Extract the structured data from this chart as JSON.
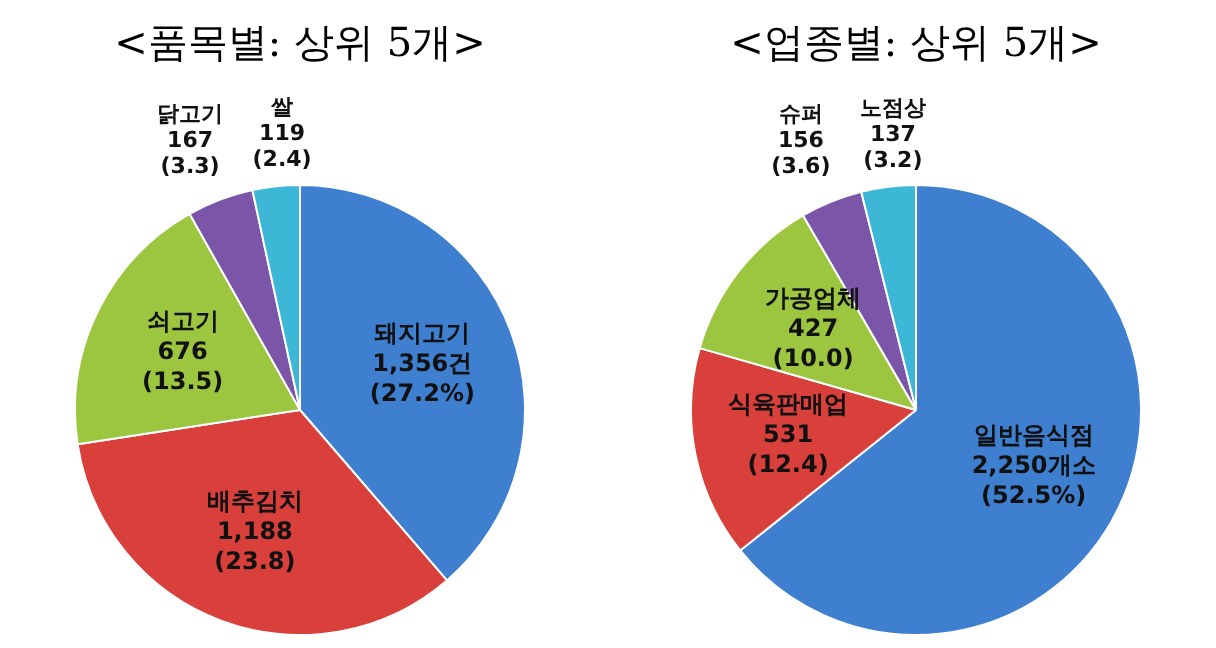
{
  "chart_data": [
    {
      "type": "pie",
      "title": "<품목별: 상위 5개>",
      "categories": [
        "돼지고기",
        "배추김치",
        "쇠고기",
        "닭고기",
        "쌀"
      ],
      "values": [
        1356,
        1188,
        676,
        167,
        119
      ],
      "colors": [
        "#3f7fd0",
        "#d9403c",
        "#9cc63f",
        "#7b56a8",
        "#3cb8d6"
      ],
      "value_labels": [
        "1,356건\n(27.2%)",
        "1,188\n(23.8)",
        "676\n(13.5)",
        "167\n(3.3)",
        "119\n(2.4)"
      ]
    },
    {
      "type": "pie",
      "title": "<업종별: 상위 5개>",
      "categories": [
        "일반음식점",
        "식육판매업",
        "가공업체",
        "슈퍼",
        "노점상"
      ],
      "values": [
        2250,
        531,
        427,
        156,
        137
      ],
      "colors": [
        "#3f7fd0",
        "#d9403c",
        "#9cc63f",
        "#7b56a8",
        "#3cb8d6"
      ],
      "value_labels": [
        "2,250개소\n(52.5%)",
        "531\n(12.4)",
        "427\n(10.0)",
        "156\n(3.6)",
        "137\n(3.2)"
      ]
    }
  ]
}
